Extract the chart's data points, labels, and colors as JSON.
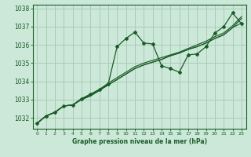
{
  "title": "Graphe pression niveau de la mer (hPa)",
  "bg_color": "#cce8d8",
  "grid_color": "#aaccb8",
  "line_color": "#1a5c28",
  "xlim": [
    -0.5,
    23.5
  ],
  "ylim": [
    1031.4,
    1038.2
  ],
  "yticks": [
    1032,
    1033,
    1034,
    1035,
    1036,
    1037,
    1038
  ],
  "xticks": [
    0,
    1,
    2,
    3,
    4,
    5,
    6,
    7,
    8,
    9,
    10,
    11,
    12,
    13,
    14,
    15,
    16,
    17,
    18,
    19,
    20,
    21,
    22,
    23
  ],
  "series1": [
    1031.7,
    1032.1,
    1032.3,
    1032.65,
    1032.7,
    1033.05,
    1033.3,
    1033.55,
    1033.85,
    1035.9,
    1036.35,
    1036.7,
    1036.1,
    1036.05,
    1034.85,
    1034.7,
    1034.5,
    1035.45,
    1035.5,
    1035.9,
    1036.65,
    1037.0,
    1037.75,
    1037.15
  ],
  "series2": [
    1031.7,
    1032.1,
    1032.3,
    1032.65,
    1032.7,
    1033.05,
    1033.25,
    1033.55,
    1033.9,
    1034.2,
    1034.5,
    1034.8,
    1035.0,
    1035.15,
    1035.3,
    1035.45,
    1035.6,
    1035.8,
    1036.0,
    1036.2,
    1036.45,
    1036.65,
    1037.05,
    1037.55
  ],
  "series3": [
    1031.7,
    1032.1,
    1032.3,
    1032.65,
    1032.7,
    1033.0,
    1033.2,
    1033.5,
    1033.8,
    1034.1,
    1034.4,
    1034.7,
    1034.9,
    1035.05,
    1035.2,
    1035.4,
    1035.55,
    1035.75,
    1035.9,
    1036.1,
    1036.35,
    1036.55,
    1036.95,
    1037.45
  ],
  "series4": [
    1031.7,
    1032.1,
    1032.3,
    1032.65,
    1032.7,
    1033.0,
    1033.2,
    1033.5,
    1033.8,
    1034.1,
    1034.4,
    1034.7,
    1034.9,
    1035.05,
    1035.2,
    1035.4,
    1035.55,
    1035.75,
    1035.9,
    1036.1,
    1036.35,
    1036.55,
    1036.95,
    1037.2
  ]
}
